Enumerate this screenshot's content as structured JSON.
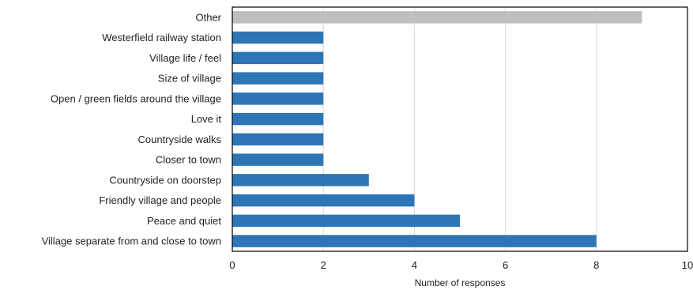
{
  "chart_data": {
    "type": "bar",
    "orientation": "horizontal",
    "title": "",
    "xlabel": "Number of responses",
    "ylabel": "",
    "xlim": [
      0,
      10
    ],
    "xticks": [
      0,
      2,
      4,
      6,
      8,
      10
    ],
    "grid": true,
    "legend": "none",
    "categories": [
      "Other",
      "Westerfield railway station",
      "Village life / feel",
      "Size of village",
      "Open / green fields around the village",
      "Love it",
      "Countryside walks",
      "Closer to town",
      "Countryside on doorstep",
      "Friendly village and people",
      "Peace and quiet",
      "Village separate from and close to town"
    ],
    "values": [
      9,
      2,
      2,
      2,
      2,
      2,
      2,
      2,
      3,
      4,
      5,
      8
    ],
    "colors": {
      "primary": "#2e75b6",
      "highlight": "#bfbfbf",
      "gridline": "#d9d9d9",
      "frame": "#000000"
    },
    "highlight_categories": [
      "Other"
    ]
  }
}
